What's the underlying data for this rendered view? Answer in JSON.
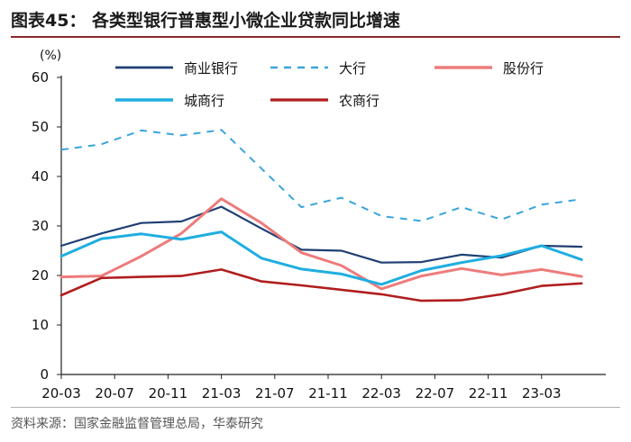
{
  "header": {
    "title": "图表45： 各类型银行普惠型小微企业贷款同比增速"
  },
  "footer": {
    "source": "资料来源：国家金融监督管理总局，华泰研究"
  },
  "chart_data": {
    "type": "line",
    "unit_label": "(%)",
    "ylim": [
      0,
      60
    ],
    "yticks": [
      0,
      10,
      20,
      30,
      40,
      50,
      60
    ],
    "x": [
      "20-03",
      "20-06",
      "20-09",
      "20-12",
      "21-03",
      "21-06",
      "21-09",
      "21-12",
      "22-03",
      "22-06",
      "22-09",
      "22-12",
      "23-03",
      "23-06"
    ],
    "xtick_labels": [
      "20-03",
      "20-07",
      "20-11",
      "21-03",
      "21-07",
      "21-11",
      "22-03",
      "22-07",
      "22-11",
      "23-03"
    ],
    "legend_placement": "top",
    "series": [
      {
        "name": "商业银行",
        "color": "#1f3f73",
        "dash": "solid",
        "width": 2.2,
        "values": [
          26.0,
          28.5,
          30.6,
          30.9,
          33.9,
          29.5,
          25.2,
          25.0,
          22.6,
          22.7,
          24.2,
          23.6,
          26.0,
          25.8
        ]
      },
      {
        "name": "大行",
        "color": "#3aa5dc",
        "dash": "dashed",
        "width": 2.0,
        "values": [
          45.4,
          46.5,
          49.3,
          48.3,
          49.4,
          41.6,
          33.8,
          35.7,
          32.0,
          31.0,
          33.8,
          31.3,
          34.3,
          35.4
        ]
      },
      {
        "name": "股份行",
        "color": "#ee7b7b",
        "dash": "solid",
        "width": 3.0,
        "values": [
          19.7,
          19.9,
          23.9,
          28.5,
          35.5,
          30.6,
          24.6,
          22.0,
          17.3,
          19.9,
          21.4,
          20.1,
          21.2,
          19.8
        ]
      },
      {
        "name": "城商行",
        "color": "#1faee0",
        "dash": "solid",
        "width": 3.0,
        "values": [
          23.9,
          27.4,
          28.4,
          27.3,
          28.8,
          23.5,
          21.3,
          20.3,
          18.2,
          21.0,
          22.6,
          24.0,
          26.0,
          23.2
        ]
      },
      {
        "name": "农商行",
        "color": "#b01e1e",
        "dash": "solid",
        "width": 2.6,
        "values": [
          16.0,
          19.5,
          19.7,
          19.9,
          21.2,
          18.8,
          18.0,
          17.1,
          16.2,
          14.9,
          15.0,
          16.2,
          17.9,
          18.4
        ]
      }
    ]
  }
}
